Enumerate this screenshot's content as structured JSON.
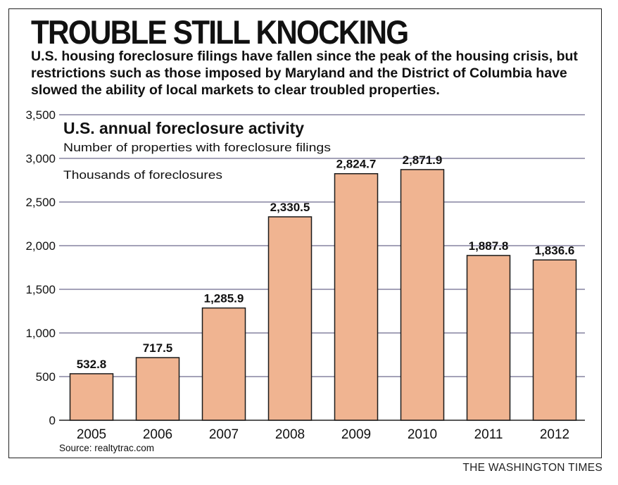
{
  "headline": "TROUBLE STILL KNOCKING",
  "deck": "U.S. housing foreclosure filings have fallen since the peak of the housing crisis, but restrictions such as those imposed by Maryland and the District of Columbia have slowed the ability of local markets to clear troubled properties.",
  "credit": "THE WASHINGTON TIMES",
  "colors": {
    "bar": "#f0b491",
    "bar_stroke": "#1a1a1a",
    "grid": "#6d6a8e",
    "text": "#111111"
  },
  "chart_data": {
    "type": "bar",
    "title": "U.S. annual foreclosure activity",
    "subtitle": "Number of properties with foreclosure filings",
    "ylabel": "Thousands of foreclosures",
    "source": "Source: realtytrac.com",
    "categories": [
      "2005",
      "2006",
      "2007",
      "2008",
      "2009",
      "2010",
      "2011",
      "2012"
    ],
    "values": [
      532.8,
      717.5,
      1285.9,
      2330.5,
      2824.7,
      2871.9,
      1887.8,
      1836.6
    ],
    "value_labels": [
      "532.8",
      "717.5",
      "1,285.9",
      "2,330.5",
      "2,824.7",
      "2,871.9",
      "1,887.8",
      "1,836.6"
    ],
    "yticks": [
      0,
      500,
      1000,
      1500,
      2000,
      2500,
      3000,
      3500
    ],
    "ytick_labels": [
      "0",
      "500",
      "1,000",
      "1,500",
      "2,000",
      "2,500",
      "3,000",
      "3,500"
    ],
    "ylim": [
      0,
      3500
    ],
    "grid": true
  }
}
